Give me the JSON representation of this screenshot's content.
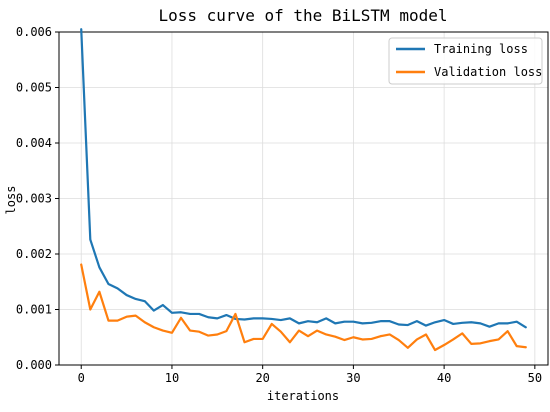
{
  "chart_data": {
    "type": "line",
    "title": "Loss curve of the BiLSTM model",
    "xlabel": "iterations",
    "ylabel": "loss",
    "xlim": [
      -2.45,
      51.45
    ],
    "ylim": [
      0,
      0.006
    ],
    "xticks": [
      0,
      10,
      20,
      30,
      40,
      50
    ],
    "xtick_labels": [
      "0",
      "10",
      "20",
      "30",
      "40",
      "50"
    ],
    "yticks": [
      0,
      0.001,
      0.002,
      0.003,
      0.004,
      0.005,
      0.006
    ],
    "ytick_labels": [
      "0.000",
      "0.001",
      "0.002",
      "0.003",
      "0.004",
      "0.005",
      "0.006"
    ],
    "grid": true,
    "legend_position": "top-right",
    "x": [
      0,
      1,
      2,
      3,
      4,
      5,
      6,
      7,
      8,
      9,
      10,
      11,
      12,
      13,
      14,
      15,
      16,
      17,
      18,
      19,
      20,
      21,
      22,
      23,
      24,
      25,
      26,
      27,
      28,
      29,
      30,
      31,
      32,
      33,
      34,
      35,
      36,
      37,
      38,
      39,
      40,
      41,
      42,
      43,
      44,
      45,
      46,
      47,
      48,
      49
    ],
    "series": [
      {
        "name": "Training loss",
        "color": "#1f77b4",
        "values": [
          0.00605,
          0.00226,
          0.00176,
          0.00146,
          0.00138,
          0.00126,
          0.00119,
          0.00115,
          0.00098,
          0.00108,
          0.00094,
          0.00095,
          0.00092,
          0.00092,
          0.00086,
          0.00084,
          0.0009,
          0.00083,
          0.00082,
          0.00084,
          0.00084,
          0.00083,
          0.00081,
          0.00084,
          0.00075,
          0.00079,
          0.00077,
          0.00084,
          0.00075,
          0.00078,
          0.00078,
          0.00075,
          0.00076,
          0.00079,
          0.00079,
          0.00073,
          0.00072,
          0.00079,
          0.00071,
          0.00077,
          0.00081,
          0.00074,
          0.00076,
          0.00077,
          0.00075,
          0.00069,
          0.00075,
          0.00075,
          0.00078,
          0.00068
        ]
      },
      {
        "name": "Validation loss",
        "color": "#ff7f0e",
        "values": [
          0.00181,
          0.001,
          0.00132,
          0.0008,
          0.0008,
          0.00087,
          0.00089,
          0.00077,
          0.00068,
          0.00062,
          0.00058,
          0.00085,
          0.00062,
          0.0006,
          0.00053,
          0.00055,
          0.00061,
          0.00092,
          0.00041,
          0.00047,
          0.00047,
          0.00074,
          0.0006,
          0.00041,
          0.00062,
          0.00052,
          0.00062,
          0.00055,
          0.00051,
          0.00045,
          0.0005,
          0.00046,
          0.00047,
          0.00052,
          0.00055,
          0.00045,
          0.00031,
          0.00046,
          0.00055,
          0.00027,
          0.00036,
          0.00046,
          0.00057,
          0.00038,
          0.00039,
          0.00043,
          0.00046,
          0.00061,
          0.00034,
          0.00032
        ]
      }
    ]
  }
}
